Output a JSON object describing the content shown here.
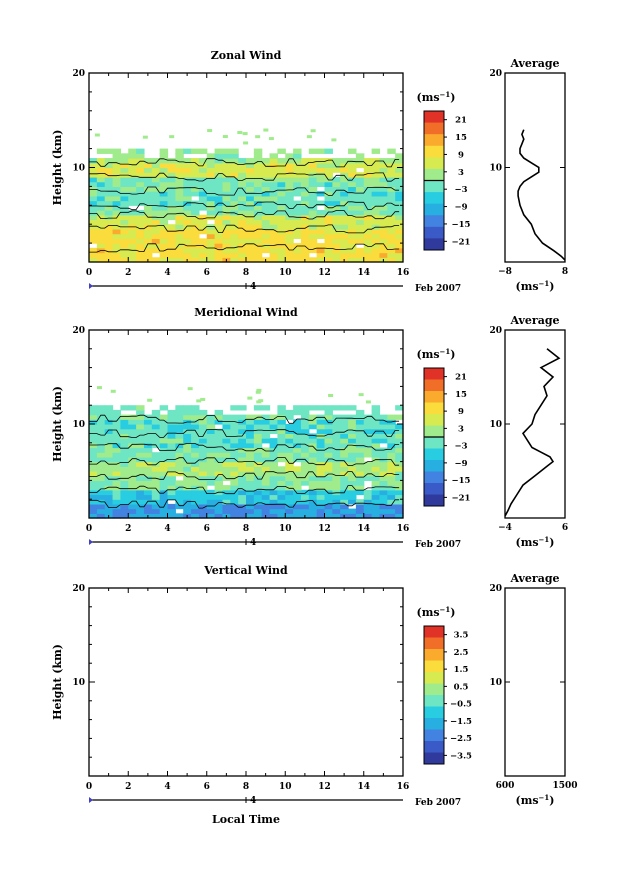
{
  "chart_data": [
    {
      "type": "heatmap",
      "title": "Zonal Wind",
      "xlabel": "",
      "ylabel": "Height (km)",
      "xlim": [
        0,
        16
      ],
      "ylim": [
        0,
        20
      ],
      "x_ticks": [
        "0",
        "2",
        "4",
        "6",
        "8",
        "10",
        "12",
        "14",
        "16"
      ],
      "y_ticks": [
        "20",
        "10"
      ],
      "date_label": "Feb 2007",
      "day_label": "4",
      "colorbar": {
        "unit": "(ms",
        "unit_exp": "−1",
        "unit_close": ")",
        "ticks": [
          "21",
          "15",
          "9",
          "3",
          "−3",
          "−9",
          "−15",
          "−21"
        ],
        "min": -24,
        "max": 24
      },
      "data_top_km": 12,
      "band_means_ms": [
        {
          "from_km": 0,
          "to_km": 1.5,
          "value": 9
        },
        {
          "from_km": 1.5,
          "to_km": 3.5,
          "value": 9
        },
        {
          "from_km": 3.5,
          "to_km": 5,
          "value": 6
        },
        {
          "from_km": 5,
          "to_km": 6,
          "value": 0
        },
        {
          "from_km": 6,
          "to_km": 7.5,
          "value": -2
        },
        {
          "from_km": 7.5,
          "to_km": 9,
          "value": -1
        },
        {
          "from_km": 9,
          "to_km": 10.5,
          "value": 6
        },
        {
          "from_km": 10.5,
          "to_km": 12,
          "value": 3
        }
      ],
      "profile": {
        "title": "Average",
        "xlim": [
          -8,
          8
        ],
        "x_ticks": [
          "−8",
          "8"
        ],
        "y_ticks": [
          "20",
          "10"
        ],
        "xlabel": "(ms",
        "xlabel_exp": "−1",
        "xlabel_close": ")",
        "h": [
          0.2,
          0.6,
          1.2,
          2,
          3,
          4,
          5,
          6,
          7,
          7.5,
          8,
          8.5,
          9,
          9.5,
          10,
          10.5,
          11,
          11.5,
          12,
          12.5,
          13,
          13.5,
          14
        ],
        "u": [
          8,
          7,
          5,
          2,
          0,
          -1,
          -3,
          -4,
          -4.5,
          -4.5,
          -4,
          -3,
          -1,
          1,
          1,
          -1,
          -3,
          -4,
          -4,
          -3.5,
          -3,
          -3.5,
          -3
        ]
      }
    },
    {
      "type": "heatmap",
      "title": "Meridional Wind",
      "xlabel": "",
      "ylabel": "Height (km)",
      "xlim": [
        0,
        16
      ],
      "ylim": [
        0,
        20
      ],
      "x_ticks": [
        "0",
        "2",
        "4",
        "6",
        "8",
        "10",
        "12",
        "14",
        "16"
      ],
      "y_ticks": [
        "20",
        "10"
      ],
      "date_label": "Feb 2007",
      "day_label": "4",
      "colorbar": {
        "unit": "(ms",
        "unit_exp": "−1",
        "unit_close": ")",
        "ticks": [
          "21",
          "15",
          "9",
          "3",
          "−3",
          "−9",
          "−15",
          "−21"
        ],
        "min": -24,
        "max": 24
      },
      "data_top_km": 12,
      "band_means_ms": [
        {
          "from_km": 0,
          "to_km": 1.5,
          "value": -12
        },
        {
          "from_km": 1.5,
          "to_km": 3,
          "value": -6
        },
        {
          "from_km": 3,
          "to_km": 4.5,
          "value": 0
        },
        {
          "from_km": 4.5,
          "to_km": 6,
          "value": 3
        },
        {
          "from_km": 6,
          "to_km": 7.5,
          "value": 0
        },
        {
          "from_km": 7.5,
          "to_km": 9,
          "value": -2
        },
        {
          "from_km": 9,
          "to_km": 10.5,
          "value": -3
        },
        {
          "from_km": 10.5,
          "to_km": 12,
          "value": 0
        }
      ],
      "profile": {
        "title": "Average",
        "xlim": [
          -4,
          6
        ],
        "x_ticks": [
          "−4",
          "6"
        ],
        "y_ticks": [
          "20",
          "10"
        ],
        "xlabel": "(ms",
        "xlabel_exp": "−1",
        "xlabel_close": ")",
        "h": [
          0.2,
          0.8,
          1.5,
          2.5,
          3.5,
          4.5,
          5.5,
          6,
          6.5,
          7,
          7.5,
          8,
          9,
          10,
          11,
          12,
          13,
          14,
          15,
          16,
          17,
          18
        ],
        "u": [
          -4,
          -3.5,
          -3,
          -2,
          -1,
          1,
          3,
          4,
          3.5,
          2,
          0.5,
          0,
          -1,
          0.5,
          1,
          2,
          3,
          2.5,
          4,
          2,
          5,
          3
        ]
      }
    },
    {
      "type": "heatmap",
      "title": "Vertical Wind",
      "xlabel": "Local Time",
      "ylabel": "Height (km)",
      "xlim": [
        0,
        16
      ],
      "ylim": [
        0,
        20
      ],
      "x_ticks": [
        "0",
        "2",
        "4",
        "6",
        "8",
        "10",
        "12",
        "14",
        "16"
      ],
      "y_ticks": [
        "20",
        "10"
      ],
      "date_label": "Feb 2007",
      "day_label": "4",
      "colorbar": {
        "unit": "(ms",
        "unit_exp": "−1",
        "unit_close": ")",
        "ticks": [
          "3.5",
          "2.5",
          "1.5",
          "0.5",
          "−0.5",
          "−1.5",
          "−2.5",
          "−3.5"
        ],
        "min": -4,
        "max": 4
      },
      "data_top_km": 0,
      "band_means_ms": [],
      "profile": {
        "title": "Average",
        "xlim": [
          600,
          1500
        ],
        "x_ticks": [
          "600",
          "1500"
        ],
        "y_ticks": [
          "20",
          "10"
        ],
        "xlabel": "(ms",
        "xlabel_exp": "−1",
        "xlabel_close": ")",
        "h": [],
        "u": []
      }
    }
  ]
}
